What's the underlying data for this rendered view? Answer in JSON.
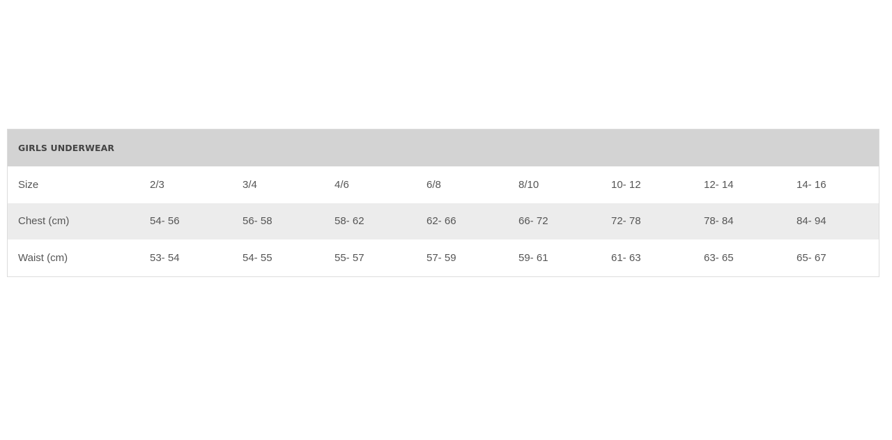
{
  "table": {
    "title": "GIRLS UNDERWEAR",
    "rows": [
      {
        "label": "Size",
        "values": [
          "2/3",
          "3/4",
          "4/6",
          "6/8",
          "8/10",
          "10- 12",
          "12- 14",
          "14- 16"
        ]
      },
      {
        "label": "Chest (cm)",
        "values": [
          "54- 56",
          "56- 58",
          "58- 62",
          "62- 66",
          "66- 72",
          "72- 78",
          "78- 84",
          "84- 94"
        ]
      },
      {
        "label": "Waist (cm)",
        "values": [
          "53- 54",
          "54- 55",
          "55- 57",
          "57- 59",
          "59- 61",
          "61- 63",
          "63- 65",
          "65- 67"
        ]
      }
    ]
  }
}
